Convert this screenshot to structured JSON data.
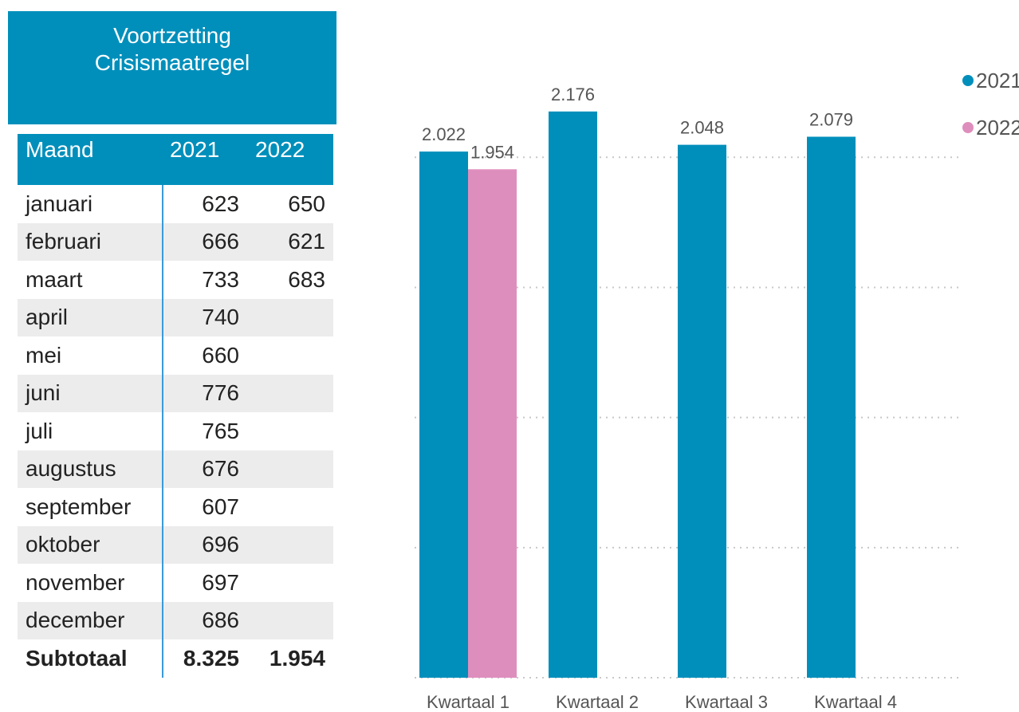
{
  "table": {
    "title": "Voortzetting Crisismaatregel",
    "header": [
      "Maand",
      "2021",
      "2022"
    ],
    "rows": [
      [
        "januari",
        623,
        650
      ],
      [
        "februari",
        666,
        621
      ],
      [
        "maart",
        733,
        683
      ],
      [
        "april",
        740,
        null
      ],
      [
        "mei",
        660,
        null
      ],
      [
        "juni",
        776,
        null
      ],
      [
        "juli",
        765,
        null
      ],
      [
        "augustus",
        676,
        null
      ],
      [
        "september",
        607,
        null
      ],
      [
        "oktober",
        696,
        null
      ],
      [
        "november",
        697,
        null
      ],
      [
        "december",
        686,
        null
      ]
    ],
    "total": [
      "Subtotaal",
      "8.325",
      "1.954"
    ]
  },
  "chart_data": {
    "type": "bar",
    "categories": [
      "Kwartaal 1",
      "Kwartaal 2",
      "Kwartaal 3",
      "Kwartaal 4"
    ],
    "series": [
      {
        "name": "2021",
        "color": "#008fbb",
        "values": [
          2022,
          2176,
          2048,
          2079
        ],
        "value_labels": [
          "2.022",
          "2.176",
          "2.048",
          "2.079"
        ]
      },
      {
        "name": "2022",
        "color": "#de8ebd",
        "values": [
          1954,
          null,
          null,
          null
        ],
        "value_labels": [
          "1.954",
          null,
          null,
          null
        ]
      }
    ],
    "ylim": [
      0,
      2200
    ],
    "yticks": [
      0,
      500,
      1000,
      1500,
      2000
    ],
    "grid": true,
    "legend": "top-right"
  }
}
